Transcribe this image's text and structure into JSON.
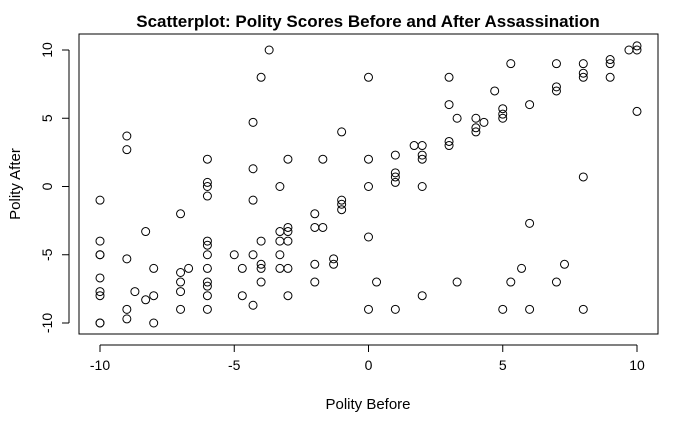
{
  "chart_data": {
    "type": "scatter",
    "title": "Scatterplot: Polity Scores Before and After Assassination",
    "xlabel": "Polity Before",
    "ylabel": "Polity After",
    "xlim": [
      -10,
      10
    ],
    "ylim": [
      -10,
      10
    ],
    "xticks": [
      -10,
      -5,
      0,
      5,
      10
    ],
    "xtick_labels": [
      "-10",
      "-5",
      "0",
      "5",
      "10"
    ],
    "yticks": [
      -10,
      -5,
      0,
      5,
      10
    ],
    "ytick_labels": [
      "-10",
      "-5",
      "0",
      "5",
      "10"
    ],
    "grid": false,
    "marker": "open-circle",
    "points": [
      [
        -10,
        -1
      ],
      [
        -10,
        -4
      ],
      [
        -10,
        -5
      ],
      [
        -10,
        -5
      ],
      [
        -10,
        -6.7
      ],
      [
        -10,
        -7.7
      ],
      [
        -10,
        -8
      ],
      [
        -10,
        -10
      ],
      [
        -10,
        -10
      ],
      [
        -9,
        3.7
      ],
      [
        -9,
        2.7
      ],
      [
        -9,
        -5.3
      ],
      [
        -9,
        -9
      ],
      [
        -9,
        -9.7
      ],
      [
        -8.7,
        -7.7
      ],
      [
        -8.3,
        -3.3
      ],
      [
        -8.3,
        -8.3
      ],
      [
        -8,
        -6
      ],
      [
        -8,
        -8
      ],
      [
        -8,
        -10
      ],
      [
        -7,
        -2
      ],
      [
        -7,
        -6.3
      ],
      [
        -7,
        -7
      ],
      [
        -7,
        -7.7
      ],
      [
        -7,
        -9
      ],
      [
        -6.7,
        -6
      ],
      [
        -6,
        2
      ],
      [
        -6,
        0.3
      ],
      [
        -6,
        0
      ],
      [
        -6,
        -0.7
      ],
      [
        -6,
        -4
      ],
      [
        -6,
        -4.3
      ],
      [
        -6,
        -5
      ],
      [
        -6,
        -6
      ],
      [
        -6,
        -7
      ],
      [
        -6,
        -7.3
      ],
      [
        -6,
        -8
      ],
      [
        -6,
        -9
      ],
      [
        -5,
        -5
      ],
      [
        -4.7,
        -6
      ],
      [
        -4.7,
        -8
      ],
      [
        -4.3,
        4.7
      ],
      [
        -4.3,
        1.3
      ],
      [
        -4.3,
        -1
      ],
      [
        -4.3,
        -5
      ],
      [
        -4.3,
        -8.7
      ],
      [
        -4,
        8
      ],
      [
        -4,
        -4
      ],
      [
        -4,
        -5.7
      ],
      [
        -4,
        -6
      ],
      [
        -4,
        -7
      ],
      [
        -3.7,
        10
      ],
      [
        -3.3,
        0
      ],
      [
        -3.3,
        -3.3
      ],
      [
        -3.3,
        -4
      ],
      [
        -3.3,
        -5
      ],
      [
        -3.3,
        -6
      ],
      [
        -3,
        2
      ],
      [
        -3,
        -3
      ],
      [
        -3,
        -3.3
      ],
      [
        -3,
        -4
      ],
      [
        -3,
        -6
      ],
      [
        -3,
        -8
      ],
      [
        -2,
        -2
      ],
      [
        -2,
        -3
      ],
      [
        -2,
        -5.7
      ],
      [
        -2,
        -7
      ],
      [
        -1.7,
        2
      ],
      [
        -1.7,
        -3
      ],
      [
        -1.3,
        -5.3
      ],
      [
        -1.3,
        -5.7
      ],
      [
        -1,
        4
      ],
      [
        -1,
        -1
      ],
      [
        -1,
        -1.3
      ],
      [
        -1,
        -1.7
      ],
      [
        0,
        8
      ],
      [
        0,
        2
      ],
      [
        0,
        0
      ],
      [
        0,
        -3.7
      ],
      [
        0,
        -9
      ],
      [
        0.3,
        -7
      ],
      [
        1,
        2.3
      ],
      [
        1,
        1
      ],
      [
        1,
        0.7
      ],
      [
        1,
        0.3
      ],
      [
        1,
        -9
      ],
      [
        1.7,
        3
      ],
      [
        2,
        3
      ],
      [
        2,
        2
      ],
      [
        2,
        2.3
      ],
      [
        2,
        0
      ],
      [
        2,
        -8
      ],
      [
        3,
        8
      ],
      [
        3,
        6
      ],
      [
        3,
        3
      ],
      [
        3,
        3.3
      ],
      [
        3.3,
        5
      ],
      [
        3.3,
        -7
      ],
      [
        4,
        5
      ],
      [
        4,
        4
      ],
      [
        4,
        4.3
      ],
      [
        4.3,
        4.7
      ],
      [
        4.7,
        7
      ],
      [
        5,
        5.7
      ],
      [
        5,
        5
      ],
      [
        5,
        5.3
      ],
      [
        5,
        -9
      ],
      [
        5.3,
        9
      ],
      [
        5.3,
        -7
      ],
      [
        5.7,
        -6
      ],
      [
        6,
        6
      ],
      [
        6,
        -2.7
      ],
      [
        6,
        -9
      ],
      [
        7,
        9
      ],
      [
        7,
        7
      ],
      [
        7,
        7.3
      ],
      [
        7,
        -7
      ],
      [
        7.3,
        -5.7
      ],
      [
        8,
        9
      ],
      [
        8,
        8
      ],
      [
        8,
        8.3
      ],
      [
        8,
        0.7
      ],
      [
        8,
        -9
      ],
      [
        9,
        9
      ],
      [
        9,
        9.3
      ],
      [
        9,
        8
      ],
      [
        9.7,
        10
      ],
      [
        10,
        10
      ],
      [
        10,
        10.3
      ],
      [
        10,
        5.5
      ]
    ]
  }
}
